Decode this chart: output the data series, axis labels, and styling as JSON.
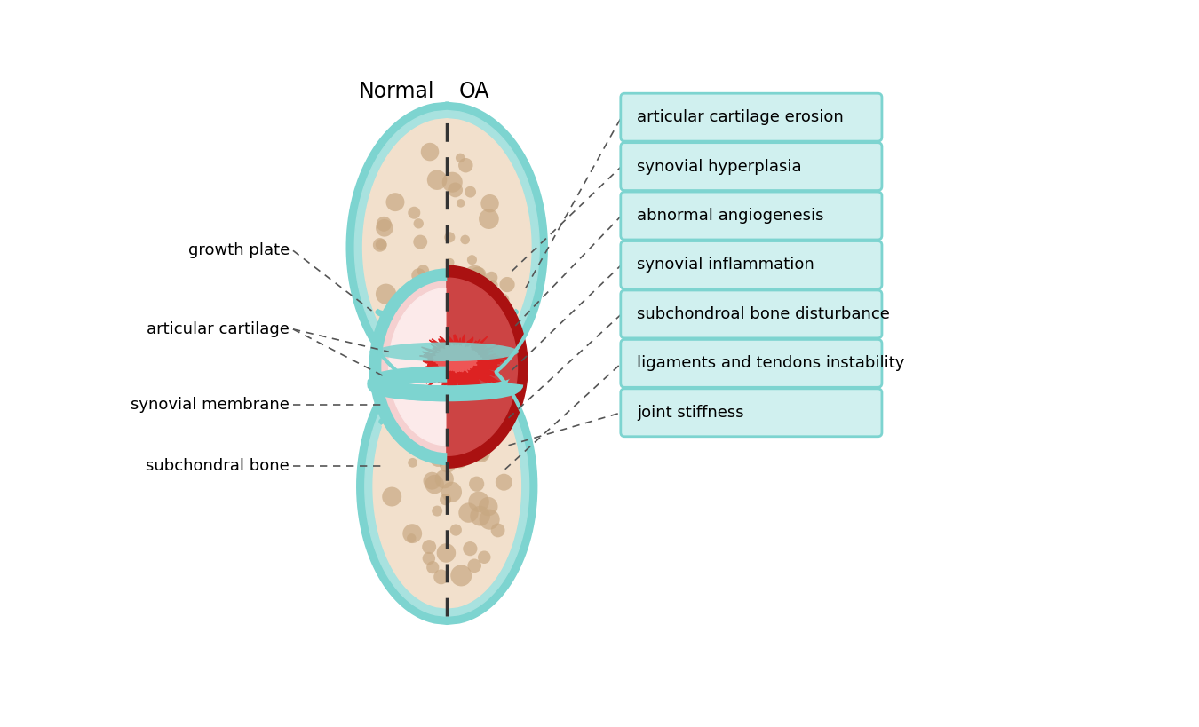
{
  "normal_label": "Normal",
  "oa_label": "OA",
  "right_labels": [
    "articular cartilage erosion",
    "synovial hyperplasia",
    "abnormal angiogenesis",
    "synovial inflammation",
    "subchondroal bone disturbance",
    "ligaments and tendons instability",
    "joint stiffness"
  ],
  "bg_color": "#ffffff",
  "teal_outer": "#7DD4D0",
  "teal_mid": "#A8E2DF",
  "teal_inner": "#C5EDEB",
  "bone_color": "#F2E0CC",
  "bone_dot": "#C8A882",
  "bone_outline": "#C8A882",
  "cartilage_teal": "#7DD4D0",
  "synovial_pink": "#E8B8B8",
  "synovial_light_pink": "#F5D0D0",
  "red_bright": "#DD2222",
  "red_dark": "#AA1111",
  "red_mid": "#CC4444",
  "pink_light": "#F0C8C8",
  "box_fill": "#D0F0EF",
  "box_edge": "#7DD4D0",
  "dashed_color": "#555555",
  "label_color": "#111111"
}
